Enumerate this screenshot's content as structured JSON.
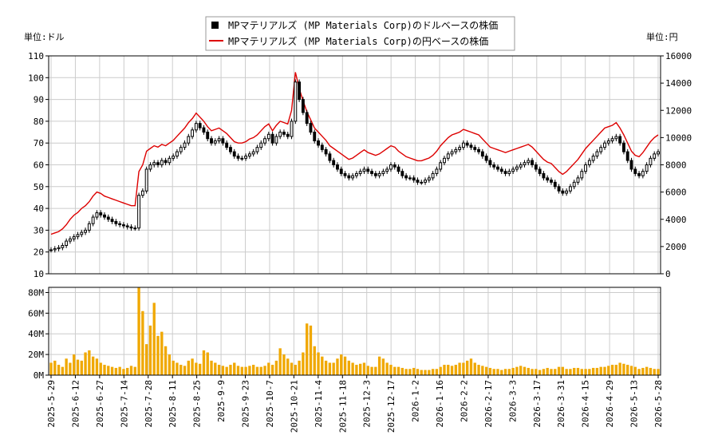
{
  "chart_data": {
    "type": "candlestick-line-bar",
    "legend": {
      "placement": "top-center",
      "entries": [
        {
          "name": "MPマテリアルズ (MP Materials Corp)のドルベースの株価",
          "color": "#000000",
          "marker": "square"
        },
        {
          "name": "MPマテリアルズ (MP Materials Corp)の円ベースの株価",
          "color": "#dd0000",
          "marker": "line"
        }
      ]
    },
    "left_axis": {
      "unit_label": "単位:ドル",
      "ylim": [
        10,
        110
      ],
      "ticks": [
        "10",
        "20",
        "30",
        "40",
        "50",
        "60",
        "70",
        "80",
        "90",
        "100",
        "110"
      ]
    },
    "right_axis": {
      "unit_label": "単位:円",
      "ylim": [
        0,
        16000
      ],
      "ticks": [
        "0",
        "2000",
        "4000",
        "6000",
        "8000",
        "10000",
        "12000",
        "14000",
        "16000"
      ]
    },
    "volume_axis": {
      "ylim": [
        0,
        85
      ],
      "ticks": [
        "0M",
        "20M",
        "40M",
        "60M",
        "80M"
      ]
    },
    "grid": true,
    "x_ticks": [
      "2025-5-29",
      "2025-6-12",
      "2025-6-27",
      "2025-7-14",
      "2025-7-28",
      "2025-8-11",
      "2025-8-25",
      "2025-9-9",
      "2025-9-23",
      "2025-10-7",
      "2025-10-21",
      "2025-11-4",
      "2025-11-18",
      "2025-12-3",
      "2025-12-17",
      "2026-1-2",
      "2026-1-16",
      "2026-2-2",
      "2026-2-17",
      "2026-3-3",
      "2026-3-17",
      "2026-3-31",
      "2026-4-15",
      "2026-4-29",
      "2026-5-13",
      "2026-5-28"
    ],
    "colors": {
      "price": "#000000",
      "yen": "#dd0000",
      "volume": "#f0a800",
      "grid": "#cccccc"
    },
    "close_usd": [
      21,
      21.5,
      22,
      23,
      25,
      26,
      27,
      28,
      29,
      30,
      33,
      36,
      38,
      37,
      36,
      35,
      34,
      33,
      32.5,
      32,
      31.5,
      31,
      31,
      46,
      48,
      58,
      60,
      61,
      60,
      62,
      61,
      63,
      64,
      66,
      68,
      70,
      73,
      76,
      79,
      77,
      75,
      72,
      70,
      71,
      72,
      70,
      68,
      66,
      64,
      63,
      63,
      64,
      65,
      66,
      68,
      70,
      72,
      74,
      70,
      73,
      75,
      74,
      73,
      80,
      98,
      90,
      84,
      79,
      75,
      71,
      69,
      67,
      65,
      62,
      60,
      58,
      56,
      55,
      54,
      55,
      56,
      57,
      58,
      57,
      56,
      55,
      56,
      57,
      58,
      60,
      59,
      57,
      55,
      54,
      54,
      53,
      52,
      52,
      53,
      54,
      56,
      58,
      61,
      63,
      65,
      66,
      67,
      68,
      70,
      69,
      68,
      67,
      66,
      64,
      62,
      60,
      59,
      58,
      57,
      56,
      57,
      58,
      59,
      60,
      61,
      62,
      60,
      58,
      56,
      54,
      53,
      52,
      50,
      48,
      47,
      48,
      50,
      52,
      54,
      57,
      60,
      62,
      64,
      66,
      68,
      70,
      71,
      72,
      73,
      70,
      66,
      62,
      58,
      56,
      55,
      57,
      60,
      63,
      65,
      66
    ],
    "yen_jpy": [
      2900,
      3000,
      3100,
      3300,
      3600,
      4000,
      4300,
      4500,
      4800,
      5000,
      5300,
      5700,
      6000,
      5900,
      5700,
      5600,
      5500,
      5400,
      5300,
      5200,
      5100,
      5000,
      5000,
      7500,
      8000,
      9000,
      9200,
      9400,
      9300,
      9500,
      9400,
      9600,
      9800,
      10100,
      10400,
      10700,
      11100,
      11400,
      11800,
      11500,
      11200,
      10800,
      10500,
      10600,
      10700,
      10500,
      10300,
      10000,
      9700,
      9600,
      9600,
      9700,
      9900,
      10000,
      10200,
      10500,
      10800,
      11000,
      10500,
      10900,
      11200,
      11100,
      11000,
      12000,
      14800,
      13600,
      12700,
      11900,
      11300,
      10700,
      10400,
      10100,
      9800,
      9400,
      9200,
      9000,
      8800,
      8600,
      8400,
      8500,
      8700,
      8900,
      9100,
      8900,
      8800,
      8700,
      8800,
      9000,
      9200,
      9400,
      9300,
      9000,
      8800,
      8600,
      8500,
      8400,
      8300,
      8300,
      8400,
      8500,
      8700,
      9000,
      9400,
      9700,
      10000,
      10200,
      10300,
      10400,
      10600,
      10500,
      10400,
      10300,
      10200,
      9900,
      9600,
      9300,
      9200,
      9100,
      9000,
      8900,
      9000,
      9100,
      9200,
      9300,
      9400,
      9500,
      9300,
      9000,
      8700,
      8400,
      8200,
      8100,
      7800,
      7500,
      7300,
      7500,
      7800,
      8100,
      8400,
      8800,
      9200,
      9500,
      9800,
      10100,
      10400,
      10700,
      10800,
      10900,
      11100,
      10700,
      10200,
      9600,
      9000,
      8700,
      8600,
      8900,
      9300,
      9700,
      10000,
      10200
    ],
    "volume_m": [
      12,
      14,
      10,
      8,
      16,
      12,
      20,
      15,
      14,
      22,
      24,
      18,
      16,
      12,
      10,
      9,
      8,
      7,
      8,
      6,
      7,
      9,
      8,
      85,
      62,
      30,
      48,
      70,
      38,
      42,
      28,
      20,
      14,
      12,
      10,
      9,
      14,
      16,
      12,
      11,
      24,
      22,
      14,
      12,
      10,
      9,
      8,
      10,
      12,
      9,
      8,
      8,
      9,
      10,
      8,
      8,
      9,
      12,
      10,
      14,
      26,
      20,
      16,
      12,
      10,
      14,
      22,
      50,
      48,
      28,
      22,
      18,
      14,
      12,
      12,
      16,
      20,
      18,
      14,
      12,
      10,
      11,
      12,
      9,
      8,
      8,
      18,
      16,
      12,
      10,
      8,
      8,
      7,
      6,
      6,
      7,
      6,
      5,
      5,
      5,
      6,
      6,
      8,
      10,
      10,
      9,
      10,
      12,
      12,
      14,
      16,
      12,
      10,
      9,
      8,
      7,
      6,
      6,
      5,
      6,
      6,
      7,
      8,
      9,
      8,
      7,
      6,
      6,
      5,
      6,
      7,
      6,
      6,
      8,
      8,
      6,
      6,
      7,
      7,
      6,
      6,
      6,
      7,
      7,
      8,
      8,
      9,
      10,
      10,
      12,
      11,
      10,
      9,
      8,
      6,
      7,
      8,
      7,
      6,
      6
    ]
  }
}
